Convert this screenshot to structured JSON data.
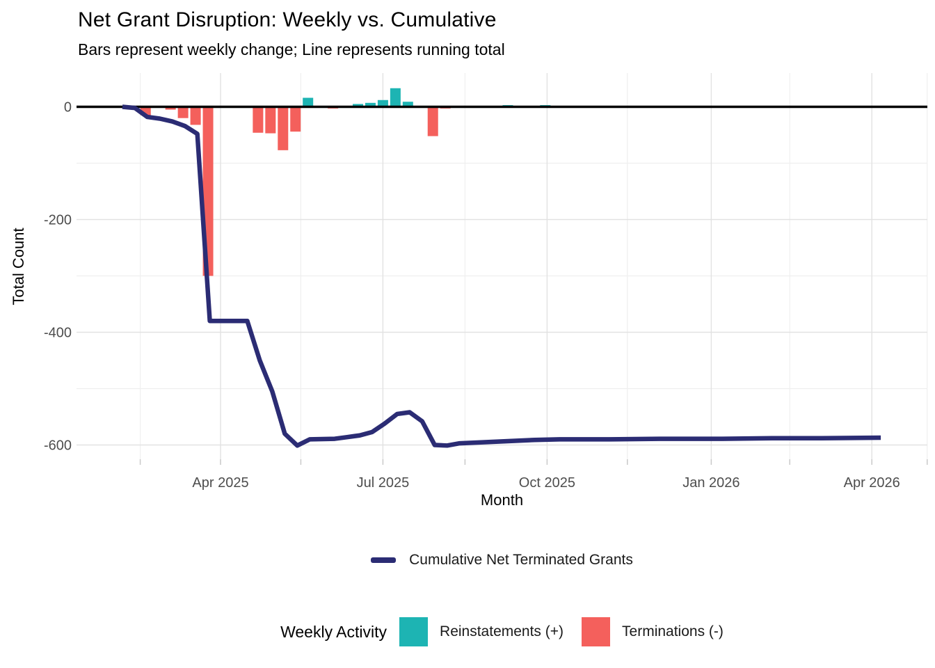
{
  "header": {
    "title": "Net Grant Disruption: Weekly vs. Cumulative",
    "subtitle": "Bars represent weekly change; Line represents running total"
  },
  "axes": {
    "x": {
      "title": "Month",
      "major_ticks": [
        {
          "label": "Apr 2025",
          "date": "2025-04-01"
        },
        {
          "label": "Jul 2025",
          "date": "2025-07-01"
        },
        {
          "label": "Oct 2025",
          "date": "2025-10-01"
        },
        {
          "label": "Jan 2026",
          "date": "2026-01-01"
        },
        {
          "label": "Apr 2026",
          "date": "2026-04-01"
        }
      ],
      "minor_tick_dates": [
        "2025-02-15",
        "2025-05-16",
        "2025-08-16",
        "2025-11-15",
        "2026-02-14",
        "2026-05-02"
      ]
    },
    "y": {
      "title": "Total Count",
      "major_ticks": [
        {
          "label": "0",
          "value": 0
        },
        {
          "label": "-200",
          "value": -200
        },
        {
          "label": "-400",
          "value": -400
        },
        {
          "label": "-600",
          "value": -600
        }
      ],
      "minor_values": [
        -100,
        -300,
        -500
      ]
    }
  },
  "legends": {
    "line": {
      "label": "Cumulative Net Terminated Grants"
    },
    "weekly": {
      "title": "Weekly Activity",
      "items": [
        {
          "label": "Reinstatements (+)",
          "color": "#1DB4B3"
        },
        {
          "label": "Terminations (-)",
          "color": "#F4605C"
        }
      ]
    }
  },
  "colors": {
    "positive": "#1DB4B3",
    "negative": "#F4605C",
    "line": "#2B2C74",
    "zero_line": "#000000",
    "grid_major": "#E2E2E2",
    "grid_minor": "#EFEFEF",
    "tick": "#C9C9C9",
    "axis_text": "#4D4D4D"
  },
  "chart_data": {
    "type": "combo",
    "title": "Net Grant Disruption: Weekly vs. Cumulative",
    "subtitle": "Bars represent weekly change; Line represents running total",
    "xlabel": "Month",
    "ylabel": "Total Count",
    "ylim": [
      -630,
      60
    ],
    "x_domain": [
      "2025-01-26",
      "2026-05-02"
    ],
    "grid": true,
    "legend_position": "bottom",
    "bar_series": {
      "name": "Weekly Activity",
      "positive_label": "Reinstatements (+)",
      "negative_label": "Terminations (-)",
      "points": [
        {
          "date": "2025-02-18",
          "value": -15
        },
        {
          "date": "2025-03-04",
          "value": -5
        },
        {
          "date": "2025-03-11",
          "value": -20
        },
        {
          "date": "2025-03-18",
          "value": -32
        },
        {
          "date": "2025-03-25",
          "value": -300
        },
        {
          "date": "2025-04-22",
          "value": -46
        },
        {
          "date": "2025-04-29",
          "value": -47
        },
        {
          "date": "2025-05-06",
          "value": -77
        },
        {
          "date": "2025-05-13",
          "value": -44
        },
        {
          "date": "2025-05-20",
          "value": 16
        },
        {
          "date": "2025-06-03",
          "value": -3
        },
        {
          "date": "2025-06-17",
          "value": 5
        },
        {
          "date": "2025-06-24",
          "value": 7
        },
        {
          "date": "2025-07-01",
          "value": 12
        },
        {
          "date": "2025-07-08",
          "value": 33
        },
        {
          "date": "2025-07-15",
          "value": 9
        },
        {
          "date": "2025-07-29",
          "value": -52
        },
        {
          "date": "2025-08-05",
          "value": -3
        },
        {
          "date": "2025-09-09",
          "value": 3
        },
        {
          "date": "2025-09-30",
          "value": 3
        }
      ]
    },
    "line_series": {
      "name": "Cumulative Net Terminated Grants",
      "points": [
        {
          "date": "2025-02-05",
          "value": 0
        },
        {
          "date": "2025-02-12",
          "value": -2
        },
        {
          "date": "2025-02-19",
          "value": -18
        },
        {
          "date": "2025-02-26",
          "value": -21
        },
        {
          "date": "2025-03-05",
          "value": -26
        },
        {
          "date": "2025-03-12",
          "value": -34
        },
        {
          "date": "2025-03-19",
          "value": -48
        },
        {
          "date": "2025-03-26",
          "value": -380
        },
        {
          "date": "2025-04-16",
          "value": -380
        },
        {
          "date": "2025-04-23",
          "value": -450
        },
        {
          "date": "2025-04-30",
          "value": -505
        },
        {
          "date": "2025-05-07",
          "value": -580
        },
        {
          "date": "2025-05-14",
          "value": -601
        },
        {
          "date": "2025-05-21",
          "value": -590
        },
        {
          "date": "2025-06-04",
          "value": -589
        },
        {
          "date": "2025-06-11",
          "value": -586
        },
        {
          "date": "2025-06-18",
          "value": -583
        },
        {
          "date": "2025-06-25",
          "value": -577
        },
        {
          "date": "2025-07-02",
          "value": -562
        },
        {
          "date": "2025-07-09",
          "value": -545
        },
        {
          "date": "2025-07-16",
          "value": -542
        },
        {
          "date": "2025-07-23",
          "value": -558
        },
        {
          "date": "2025-07-30",
          "value": -600
        },
        {
          "date": "2025-08-06",
          "value": -601
        },
        {
          "date": "2025-08-13",
          "value": -597
        },
        {
          "date": "2025-08-27",
          "value": -595
        },
        {
          "date": "2025-09-10",
          "value": -593
        },
        {
          "date": "2025-09-24",
          "value": -591
        },
        {
          "date": "2025-10-08",
          "value": -590
        },
        {
          "date": "2025-11-05",
          "value": -590
        },
        {
          "date": "2025-12-03",
          "value": -589
        },
        {
          "date": "2026-01-07",
          "value": -589
        },
        {
          "date": "2026-02-04",
          "value": -588
        },
        {
          "date": "2026-03-04",
          "value": -588
        },
        {
          "date": "2026-04-06",
          "value": -587
        }
      ]
    }
  }
}
